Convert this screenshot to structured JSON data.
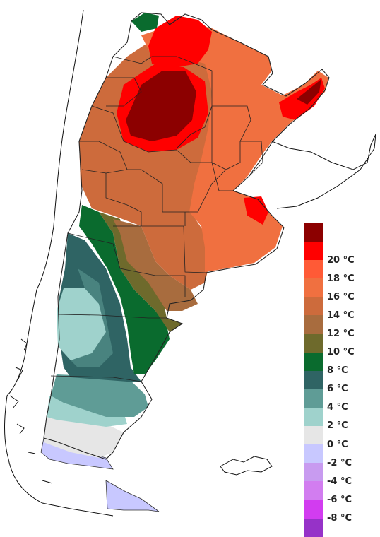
{
  "legend": {
    "items": [
      {
        "color": "#8c0000",
        "label": ""
      },
      {
        "color": "#ff0000",
        "label": "20 °C"
      },
      {
        "color": "#ff5a36",
        "label": "18 °C"
      },
      {
        "color": "#f07040",
        "label": "16 °C"
      },
      {
        "color": "#cd6b3c",
        "label": "14 °C"
      },
      {
        "color": "#a86c3e",
        "label": "12 °C"
      },
      {
        "color": "#6e6a2c",
        "label": "10 °C"
      },
      {
        "color": "#0a6b2e",
        "label": "8 °C"
      },
      {
        "color": "#2f6464",
        "label": "6 °C"
      },
      {
        "color": "#5f9c96",
        "label": "4 °C"
      },
      {
        "color": "#9fd2cc",
        "label": "2 °C"
      },
      {
        "color": "#e6e6e6",
        "label": "0 °C"
      },
      {
        "color": "#c8c8ff",
        "label": "-2 °C"
      },
      {
        "color": "#c89bf0",
        "label": "-4 °C"
      },
      {
        "color": "#d27df0",
        "label": "-6 °C"
      },
      {
        "color": "#d23cf0",
        "label": "-8 °C"
      },
      {
        "color": "#9632c8",
        "label": ""
      }
    ]
  }
}
